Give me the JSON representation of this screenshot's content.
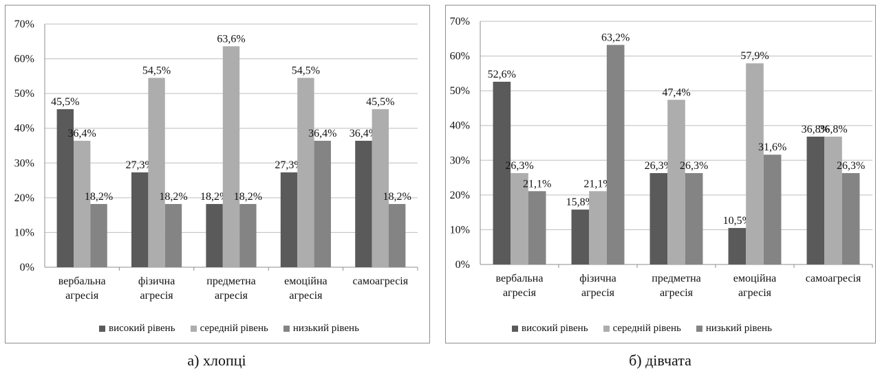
{
  "colors": {
    "high": "#5a5a5a",
    "mid": "#adadad",
    "low": "#848484",
    "grid": "#bdbdbd",
    "axis": "#8c8c8c"
  },
  "legend": [
    "високий рівень",
    "середній рівень",
    "низький рівень"
  ],
  "captions": [
    "а) хлопці",
    "б) дівчата"
  ],
  "chart_data": [
    {
      "type": "bar",
      "title": "",
      "caption": "а) хлопці",
      "ylim": [
        0,
        70
      ],
      "yticks": [
        "0%",
        "10%",
        "20%",
        "30%",
        "40%",
        "50%",
        "60%",
        "70%"
      ],
      "categories": [
        [
          "вербальна",
          "агресія"
        ],
        [
          "фізична",
          "агресія"
        ],
        [
          "предметна",
          "агресія"
        ],
        [
          "емоційна",
          "агресія"
        ],
        [
          "самоагресія"
        ]
      ],
      "series": [
        {
          "name": "високий рівень",
          "values": [
            45.5,
            27.3,
            18.2,
            27.3,
            36.4
          ],
          "labels": [
            "45,5%",
            "27,3%",
            "18,2%",
            "27,3%",
            "36,4%"
          ]
        },
        {
          "name": "середній рівень",
          "values": [
            36.4,
            54.5,
            63.6,
            54.5,
            45.5
          ],
          "labels": [
            "36,4%",
            "54,5%",
            "63,6%",
            "54,5%",
            "45,5%"
          ]
        },
        {
          "name": "низький рівень",
          "values": [
            18.2,
            18.2,
            18.2,
            36.4,
            18.2
          ],
          "labels": [
            "18,2%",
            "18,2%",
            "18,2%",
            "36,4%",
            "18,2%"
          ]
        }
      ],
      "grid": true,
      "legend_position": "bottom"
    },
    {
      "type": "bar",
      "title": "",
      "caption": "б) дівчата",
      "ylim": [
        0,
        70
      ],
      "yticks": [
        "0%",
        "10%",
        "20%",
        "30%",
        "40%",
        "50%",
        "60%",
        "70%"
      ],
      "categories": [
        [
          "вербальна",
          "агресія"
        ],
        [
          "фізична",
          "агресія"
        ],
        [
          "предметна",
          "агресія"
        ],
        [
          "емоційна",
          "агресія"
        ],
        [
          "самоагресія"
        ]
      ],
      "series": [
        {
          "name": "високий рівень",
          "values": [
            52.6,
            15.8,
            26.3,
            10.5,
            36.8
          ],
          "labels": [
            "52,6%",
            "15,8%",
            "26,3%",
            "10,5%",
            "36,8%"
          ]
        },
        {
          "name": "середній рівень",
          "values": [
            26.3,
            21.1,
            47.4,
            57.9,
            36.8
          ],
          "labels": [
            "26,3%",
            "21,1%",
            "47,4%",
            "57,9%",
            "36,8%"
          ]
        },
        {
          "name": "низький рівень",
          "values": [
            21.1,
            63.2,
            26.3,
            31.6,
            26.3
          ],
          "labels": [
            "21,1%",
            "63,2%",
            "26,3%",
            "31,6%",
            "26,3%"
          ]
        }
      ],
      "grid": true,
      "legend_position": "bottom"
    }
  ]
}
